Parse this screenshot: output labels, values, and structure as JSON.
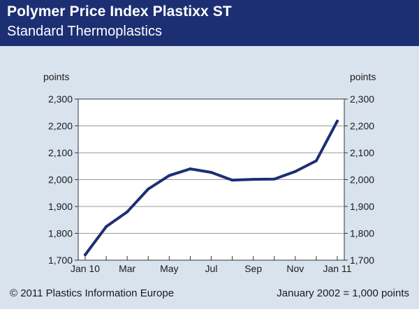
{
  "header": {
    "title": "Polymer Price Index Plastixx ST",
    "subtitle": "Standard Thermoplastics"
  },
  "footer": {
    "copyright": "© 2011 Plastics Information Europe",
    "base_note": "January 2002 = 1,000 points"
  },
  "colors": {
    "header_bg": "#1d2f73",
    "page_bg": "#d9e3ee",
    "plot_bg": "#ffffff",
    "series": "#1d2f73"
  },
  "chart_data": {
    "type": "line",
    "title": "Polymer Price Index Plastixx ST",
    "subtitle": "Standard Thermoplastics",
    "ylabel_left": "points",
    "ylabel_right": "points",
    "x": [
      "Jan 10",
      "Feb 10",
      "Mar 10",
      "Apr 10",
      "May 10",
      "Jun 10",
      "Jul 10",
      "Aug 10",
      "Sep 10",
      "Oct 10",
      "Nov 10",
      "Dec 10",
      "Jan 11"
    ],
    "x_tick_labels": [
      "Jan 10",
      "Mar",
      "May",
      "Jul",
      "Sep",
      "Nov",
      "Jan 11"
    ],
    "x_tick_index": [
      0,
      2,
      4,
      6,
      8,
      10,
      12
    ],
    "series": [
      {
        "values": [
          1720,
          1825,
          1880,
          1965,
          2015,
          2040,
          2027,
          1998,
          2001,
          2002,
          2030,
          2070,
          2218
        ]
      }
    ],
    "y_ticks": [
      1700,
      1800,
      1900,
      2000,
      2100,
      2200,
      2300
    ],
    "y_tick_labels": [
      "1,700",
      "1,800",
      "1,900",
      "2,000",
      "2,100",
      "2,200",
      "2,300"
    ],
    "ylim": [
      1700,
      2300
    ],
    "grid": true
  }
}
